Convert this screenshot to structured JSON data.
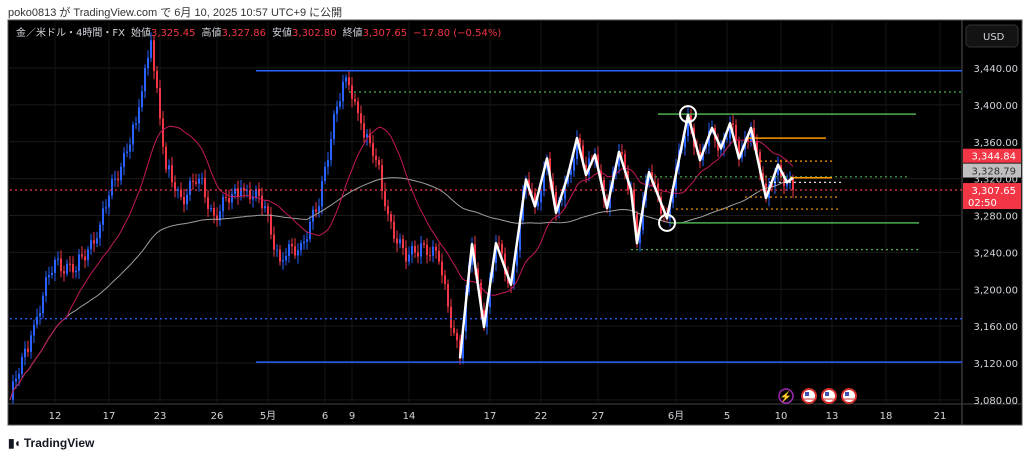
{
  "published": "poko0813 が TradingView.com で 6月 10, 2025 10:57 UTC+9 に公開",
  "legend": {
    "symbol": "金／米ドル・4時間・FX",
    "open_label": "始値",
    "open": "3,325.45",
    "high_label": "高値",
    "high": "3,327.86",
    "low_label": "安値",
    "low": "3,302.80",
    "close_label": "終値",
    "close": "3,307.65",
    "change": "−17.80 (−0.54%)"
  },
  "currency_button": "USD",
  "footer_logo": "TradingView",
  "colors": {
    "up": "#2962ff",
    "down": "#f23645",
    "bg": "#000000",
    "ma_fast": "#c2185b",
    "ma_slow": "#a0a0a0"
  },
  "price_labels": [
    {
      "text": "3,344.84",
      "bg": "#f23645",
      "fg": "#ffffff",
      "price": 3344.84
    },
    {
      "text": "3,328.79",
      "bg": "#c0c0c0",
      "fg": "#333333",
      "price": 3328.79
    },
    {
      "text": "3,307.65",
      "sub": "02:50",
      "bg": "#f23645",
      "fg": "#ffffff",
      "price": 3307.65
    }
  ],
  "chart_data": {
    "type": "candlestick",
    "title": "金／米ドル・4時間・FX",
    "ylim": [
      3065,
      3480
    ],
    "y_ticks": [
      "3,440.00",
      "3,400.00",
      "3,360.00",
      "3,320.00",
      "3,280.00",
      "3,240.00",
      "3,200.00",
      "3,160.00",
      "3,120.00",
      "3,080.00"
    ],
    "y_tick_values": [
      3440,
      3400,
      3360,
      3320,
      3280,
      3240,
      3200,
      3160,
      3120,
      3080
    ],
    "x_ticks": [
      {
        "label": "12",
        "bar": 15
      },
      {
        "label": "17",
        "bar": 33
      },
      {
        "label": "23",
        "bar": 50
      },
      {
        "label": "26",
        "bar": 69
      },
      {
        "label": "5月",
        "bar": 86
      },
      {
        "label": "6",
        "bar": 105
      },
      {
        "label": "9",
        "bar": 114
      },
      {
        "label": "14",
        "bar": 133
      },
      {
        "label": "17",
        "bar": 160
      },
      {
        "label": "22",
        "bar": 177
      },
      {
        "label": "27",
        "bar": 196
      },
      {
        "label": "6月",
        "bar": 222
      },
      {
        "label": "5",
        "bar": 239
      },
      {
        "label": "10",
        "bar": 257
      },
      {
        "label": "13",
        "bar": 274
      },
      {
        "label": "18",
        "bar": 292
      },
      {
        "label": "21",
        "bar": 310
      }
    ],
    "price_waypoints": [
      [
        0,
        3080
      ],
      [
        7,
        3150
      ],
      [
        15,
        3232
      ],
      [
        22,
        3220
      ],
      [
        30,
        3270
      ],
      [
        35,
        3320
      ],
      [
        42,
        3380
      ],
      [
        47,
        3470
      ],
      [
        52,
        3330
      ],
      [
        57,
        3300
      ],
      [
        63,
        3320
      ],
      [
        68,
        3280
      ],
      [
        77,
        3310
      ],
      [
        85,
        3290
      ],
      [
        90,
        3230
      ],
      [
        97,
        3250
      ],
      [
        103,
        3290
      ],
      [
        108,
        3390
      ],
      [
        112,
        3430
      ],
      [
        117,
        3380
      ],
      [
        122,
        3340
      ],
      [
        125,
        3290
      ],
      [
        132,
        3230
      ],
      [
        137,
        3250
      ],
      [
        143,
        3230
      ],
      [
        150,
        3125
      ],
      [
        154,
        3249
      ],
      [
        158,
        3159
      ],
      [
        162,
        3250
      ],
      [
        167,
        3205
      ],
      [
        172,
        3319
      ],
      [
        175,
        3290
      ],
      [
        179,
        3342
      ],
      [
        182,
        3283
      ],
      [
        186,
        3324
      ],
      [
        189,
        3364
      ],
      [
        192,
        3324
      ],
      [
        195,
        3346
      ],
      [
        199,
        3288
      ],
      [
        203,
        3349
      ],
      [
        207,
        3308
      ],
      [
        209,
        3250
      ],
      [
        213,
        3327
      ],
      [
        219,
        3277
      ],
      [
        226,
        3389
      ],
      [
        230,
        3340
      ],
      [
        234,
        3375
      ],
      [
        237,
        3353
      ],
      [
        240,
        3380
      ],
      [
        243,
        3342
      ],
      [
        247,
        3375
      ],
      [
        252,
        3299
      ],
      [
        256,
        3335
      ],
      [
        259,
        3316
      ],
      [
        261,
        3307.65
      ]
    ],
    "zigzag": [
      [
        150,
        3125
      ],
      [
        154,
        3249
      ],
      [
        158,
        3159
      ],
      [
        162,
        3250
      ],
      [
        167,
        3205
      ],
      [
        172,
        3319
      ],
      [
        175,
        3290
      ],
      [
        179,
        3342
      ],
      [
        182,
        3283
      ],
      [
        186,
        3324
      ],
      [
        189,
        3364
      ],
      [
        192,
        3324
      ],
      [
        195,
        3346
      ],
      [
        199,
        3288
      ],
      [
        203,
        3349
      ],
      [
        207,
        3308
      ],
      [
        209,
        3250
      ],
      [
        213,
        3327
      ],
      [
        219,
        3277
      ],
      [
        226,
        3389
      ],
      [
        230,
        3340
      ],
      [
        234,
        3375
      ],
      [
        237,
        3353
      ],
      [
        240,
        3380
      ],
      [
        243,
        3342
      ],
      [
        247,
        3375
      ],
      [
        252,
        3299
      ],
      [
        256,
        3335
      ],
      [
        259,
        3316
      ],
      [
        261,
        3321
      ]
    ],
    "moving_averages": [
      {
        "name": "MA fast",
        "period": 20,
        "color": "#c2185b"
      },
      {
        "name": "MA slow",
        "period": 100,
        "color": "#a0a0a0"
      }
    ],
    "levels": [
      {
        "price": 3437,
        "from": 82,
        "to": 318,
        "color": "#2962ff",
        "style": "solid"
      },
      {
        "price": 3121,
        "from": 82,
        "to": 318,
        "color": "#2962ff",
        "style": "solid"
      },
      {
        "price": 3168,
        "from": 0,
        "to": 318,
        "color": "#2962ff",
        "style": "dotted"
      },
      {
        "price": 3414,
        "from": 113,
        "to": 318,
        "color": "#4caf50",
        "style": "dotted"
      },
      {
        "price": 3390,
        "from": 216,
        "to": 302,
        "color": "#4caf50",
        "style": "solid"
      },
      {
        "price": 3322,
        "from": 210,
        "to": 300,
        "color": "#4caf50",
        "style": "dotted"
      },
      {
        "price": 3272,
        "from": 220,
        "to": 303,
        "color": "#4caf50",
        "style": "solid"
      },
      {
        "price": 3243,
        "from": 207,
        "to": 303,
        "color": "#4caf50",
        "style": "dotted"
      },
      {
        "price": 3364,
        "from": 245,
        "to": 272,
        "color": "#ff9800",
        "style": "solid"
      },
      {
        "price": 3339,
        "from": 250,
        "to": 274,
        "color": "#ff9800",
        "style": "dotted"
      },
      {
        "price": 3321,
        "from": 260,
        "to": 274,
        "color": "#ff9800",
        "style": "solid"
      },
      {
        "price": 3316,
        "from": 253,
        "to": 277,
        "color": "#ffffff",
        "style": "dotted"
      },
      {
        "price": 3300,
        "from": 245,
        "to": 276,
        "color": "#ff9800",
        "style": "dotted"
      },
      {
        "price": 3287,
        "from": 222,
        "to": 276,
        "color": "#ff9800",
        "style": "dotted"
      },
      {
        "price": 3307.65,
        "from": 0,
        "to": 318,
        "color": "#f23645",
        "style": "dotted"
      }
    ],
    "circles": [
      [
        226,
        3390
      ],
      [
        219,
        3272
      ]
    ]
  }
}
